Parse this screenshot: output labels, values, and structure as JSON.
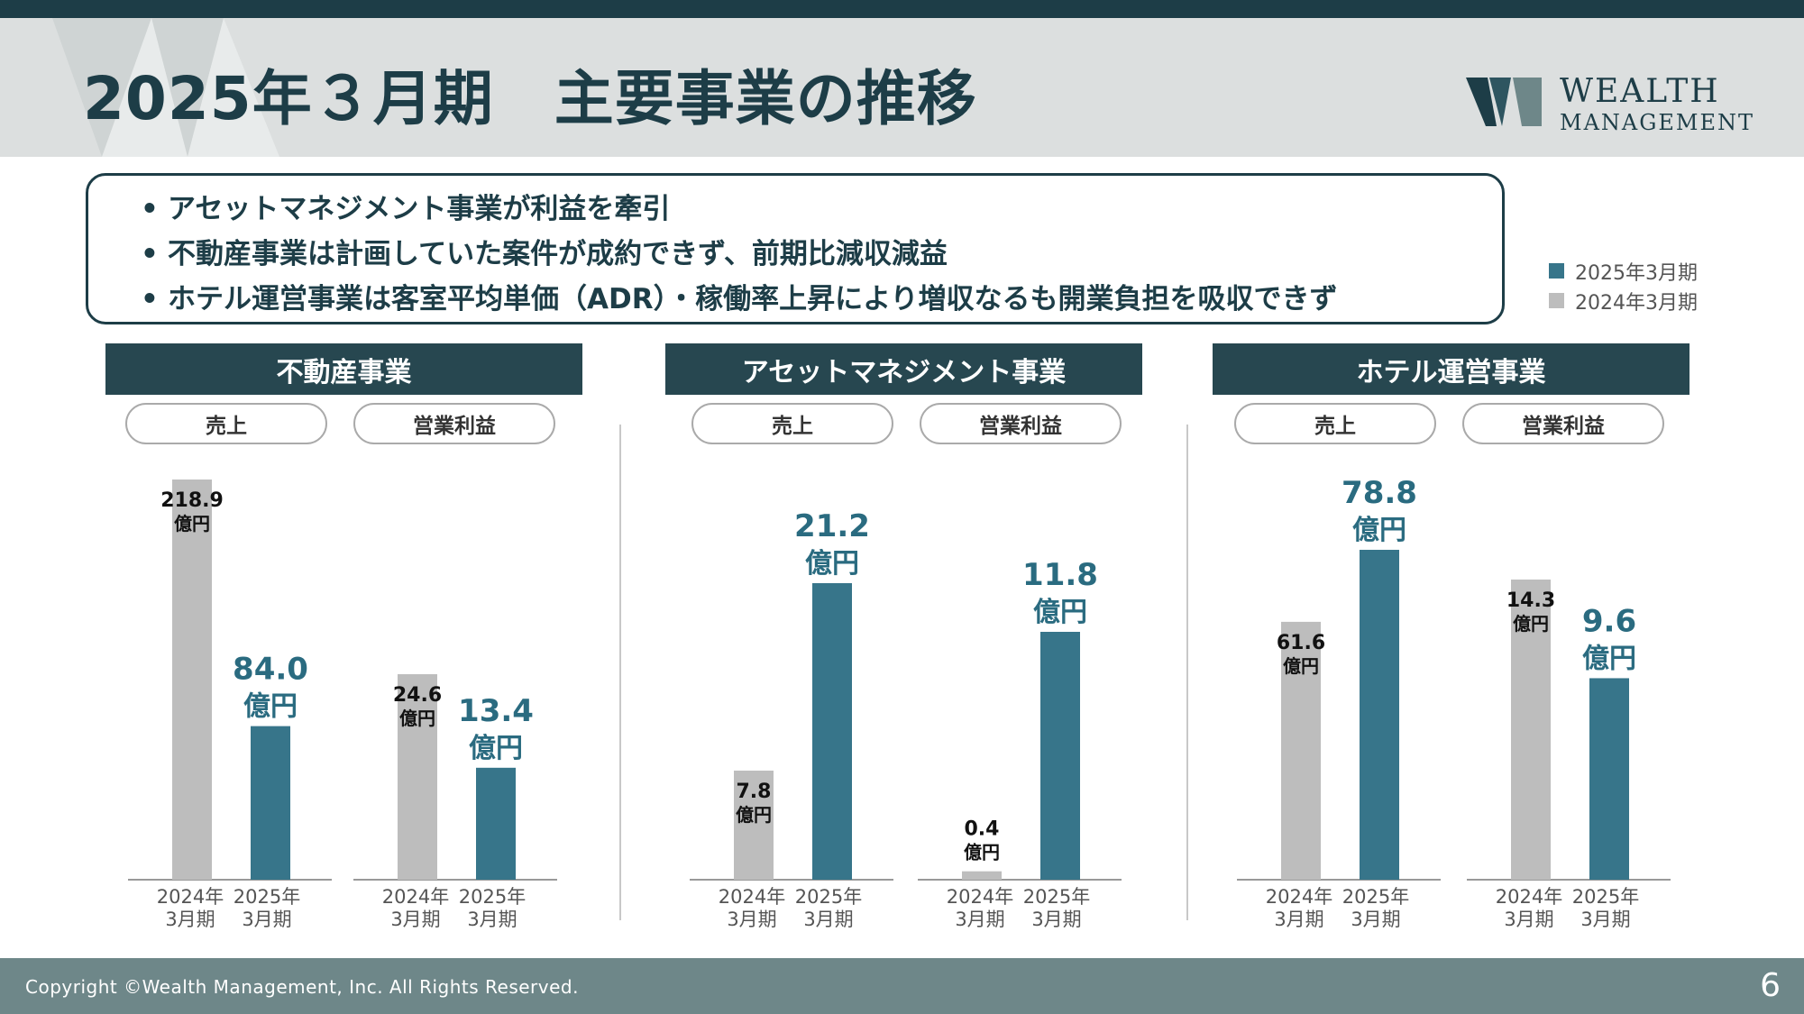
{
  "header": {
    "title": "2025年３月期　主要事業の推移",
    "logo_line1": "WEALTH",
    "logo_line2": "MANAGEMENT"
  },
  "summary": {
    "bullets": [
      "アセットマネジメント事業が利益を牽引",
      "不動産事業は計画していた案件が成約できず、前期比減収減益",
      "ホテル運営事業は客室平均単価（ADR）・稼働率上昇により増収なるも開業負担を吸収できず"
    ],
    "bullet_mark": "•"
  },
  "legend": {
    "items": [
      {
        "label": "2025年3月期",
        "color": "#37758a"
      },
      {
        "label": "2024年3月期",
        "color": "#bdbdbd"
      }
    ]
  },
  "sections": [
    {
      "title": "不動産事業",
      "sales_label": "売上",
      "profit_label": "営業利益"
    },
    {
      "title": "アセットマネジメント事業",
      "sales_label": "売上",
      "profit_label": "営業利益"
    },
    {
      "title": "ホテル運営事業",
      "sales_label": "売上",
      "profit_label": "営業利益"
    }
  ],
  "chart_data": {
    "type": "bar",
    "unit": "億円",
    "categories": [
      "2024年\n3月期",
      "2025年\n3月期"
    ],
    "colors": {
      "prev": "#bdbdbd",
      "curr": "#37758a",
      "prev_label": "#111111",
      "curr_label": "#2a6b80"
    },
    "charts": [
      {
        "section": "不動産事業",
        "metric": "売上",
        "values": [
          218.9,
          84.0
        ]
      },
      {
        "section": "不動産事業",
        "metric": "営業利益",
        "values": [
          24.6,
          13.4
        ]
      },
      {
        "section": "アセットマネジメント事業",
        "metric": "売上",
        "values": [
          7.8,
          21.2
        ]
      },
      {
        "section": "アセットマネジメント事業",
        "metric": "営業利益",
        "values": [
          0.4,
          11.8
        ]
      },
      {
        "section": "ホテル運営事業",
        "metric": "売上",
        "values": [
          61.6,
          78.8
        ]
      },
      {
        "section": "ホテル運営事業",
        "metric": "営業利益",
        "values": [
          14.3,
          9.6
        ]
      }
    ],
    "value_labels": [
      [
        "218.9",
        "84.0"
      ],
      [
        "24.6",
        "13.4"
      ],
      [
        "7.8",
        "21.2"
      ],
      [
        "0.4",
        "11.8"
      ],
      [
        "61.6",
        "78.8"
      ],
      [
        "14.3",
        "9.6"
      ]
    ]
  },
  "footer": {
    "copyright": "Copyright ©Wealth Management, Inc. All Rights Reserved.",
    "page_number": "6"
  }
}
